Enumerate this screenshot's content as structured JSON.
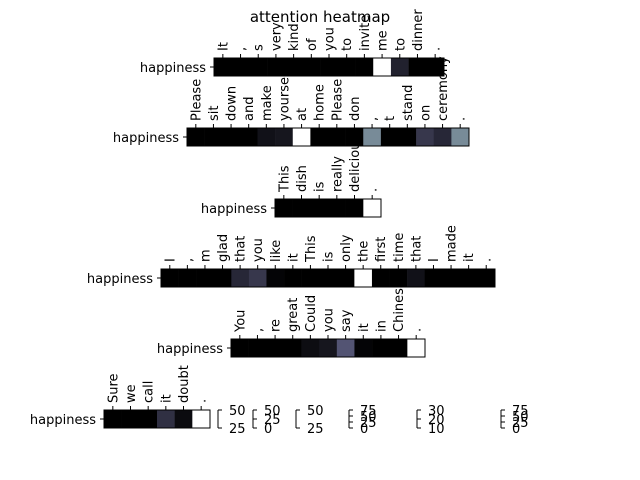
{
  "chart_data": {
    "type": "heatmap",
    "title": "attention heatmap",
    "colormap": "bone",
    "panels": [
      {
        "ylabel": "happiness",
        "tokens": [
          "It",
          ",",
          "s",
          "very",
          "kind",
          "of",
          "you",
          "to",
          "invite",
          "me",
          "to",
          "dinner",
          "."
        ],
        "values": [
          0.0,
          0.0,
          0.0,
          0.0,
          0.0,
          0.0,
          0.0,
          0.0,
          0.0,
          1.0,
          0.15,
          0.0,
          0.0
        ]
      },
      {
        "ylabel": "happiness",
        "tokens": [
          "Please",
          "sit",
          "down",
          "and",
          "make",
          "yourself",
          "at",
          "home",
          "Please",
          "don",
          ",",
          "t",
          "stand",
          "on",
          "ceremony",
          "."
        ],
        "values": [
          0.0,
          0.0,
          0.0,
          0.0,
          0.08,
          0.1,
          1.0,
          0.0,
          0.0,
          0.0,
          0.55,
          0.0,
          0.0,
          0.25,
          0.18,
          0.55
        ]
      },
      {
        "ylabel": "happiness",
        "tokens": [
          "This",
          "dish",
          "is",
          "really",
          "delicious",
          "."
        ],
        "values": [
          0.0,
          0.0,
          0.0,
          0.0,
          0.0,
          1.0
        ]
      },
      {
        "ylabel": "happiness",
        "tokens": [
          "I",
          ",",
          "m",
          "glad",
          "that",
          "you",
          "like",
          "it",
          "This",
          "is",
          "only",
          "the",
          "first",
          "time",
          "that",
          "I",
          "made",
          "it",
          "."
        ],
        "values": [
          0.0,
          0.0,
          0.0,
          0.0,
          0.18,
          0.25,
          0.02,
          0.0,
          0.0,
          0.0,
          0.0,
          1.0,
          0.0,
          0.0,
          0.08,
          0.0,
          0.0,
          0.0,
          0.0
        ]
      },
      {
        "ylabel": "happiness",
        "tokens": [
          "You",
          ",",
          "re",
          "great",
          "Could",
          "you",
          "say",
          "it",
          "in",
          "Chinese",
          "."
        ],
        "values": [
          0.0,
          0.0,
          0.0,
          0.0,
          0.06,
          0.1,
          0.38,
          0.02,
          0.0,
          0.0,
          1.0
        ]
      },
      {
        "ylabel": "happiness",
        "tokens": [
          "Sure",
          "we",
          "call",
          "it",
          "doubt",
          "."
        ],
        "values": [
          0.0,
          0.0,
          0.0,
          0.22,
          0.05,
          1.0
        ]
      }
    ],
    "colorbars": [
      {
        "ticks": [
          "50",
          "25"
        ]
      },
      {
        "ticks": [
          "50",
          "25",
          "0"
        ]
      },
      {
        "ticks": [
          "50",
          "25"
        ]
      },
      {
        "ticks": [
          "75",
          "50",
          "25",
          "0"
        ]
      },
      {
        "ticks": [
          "30",
          "20",
          "10"
        ]
      },
      {
        "ticks": [
          "75",
          "50",
          "25",
          "0"
        ]
      }
    ]
  }
}
